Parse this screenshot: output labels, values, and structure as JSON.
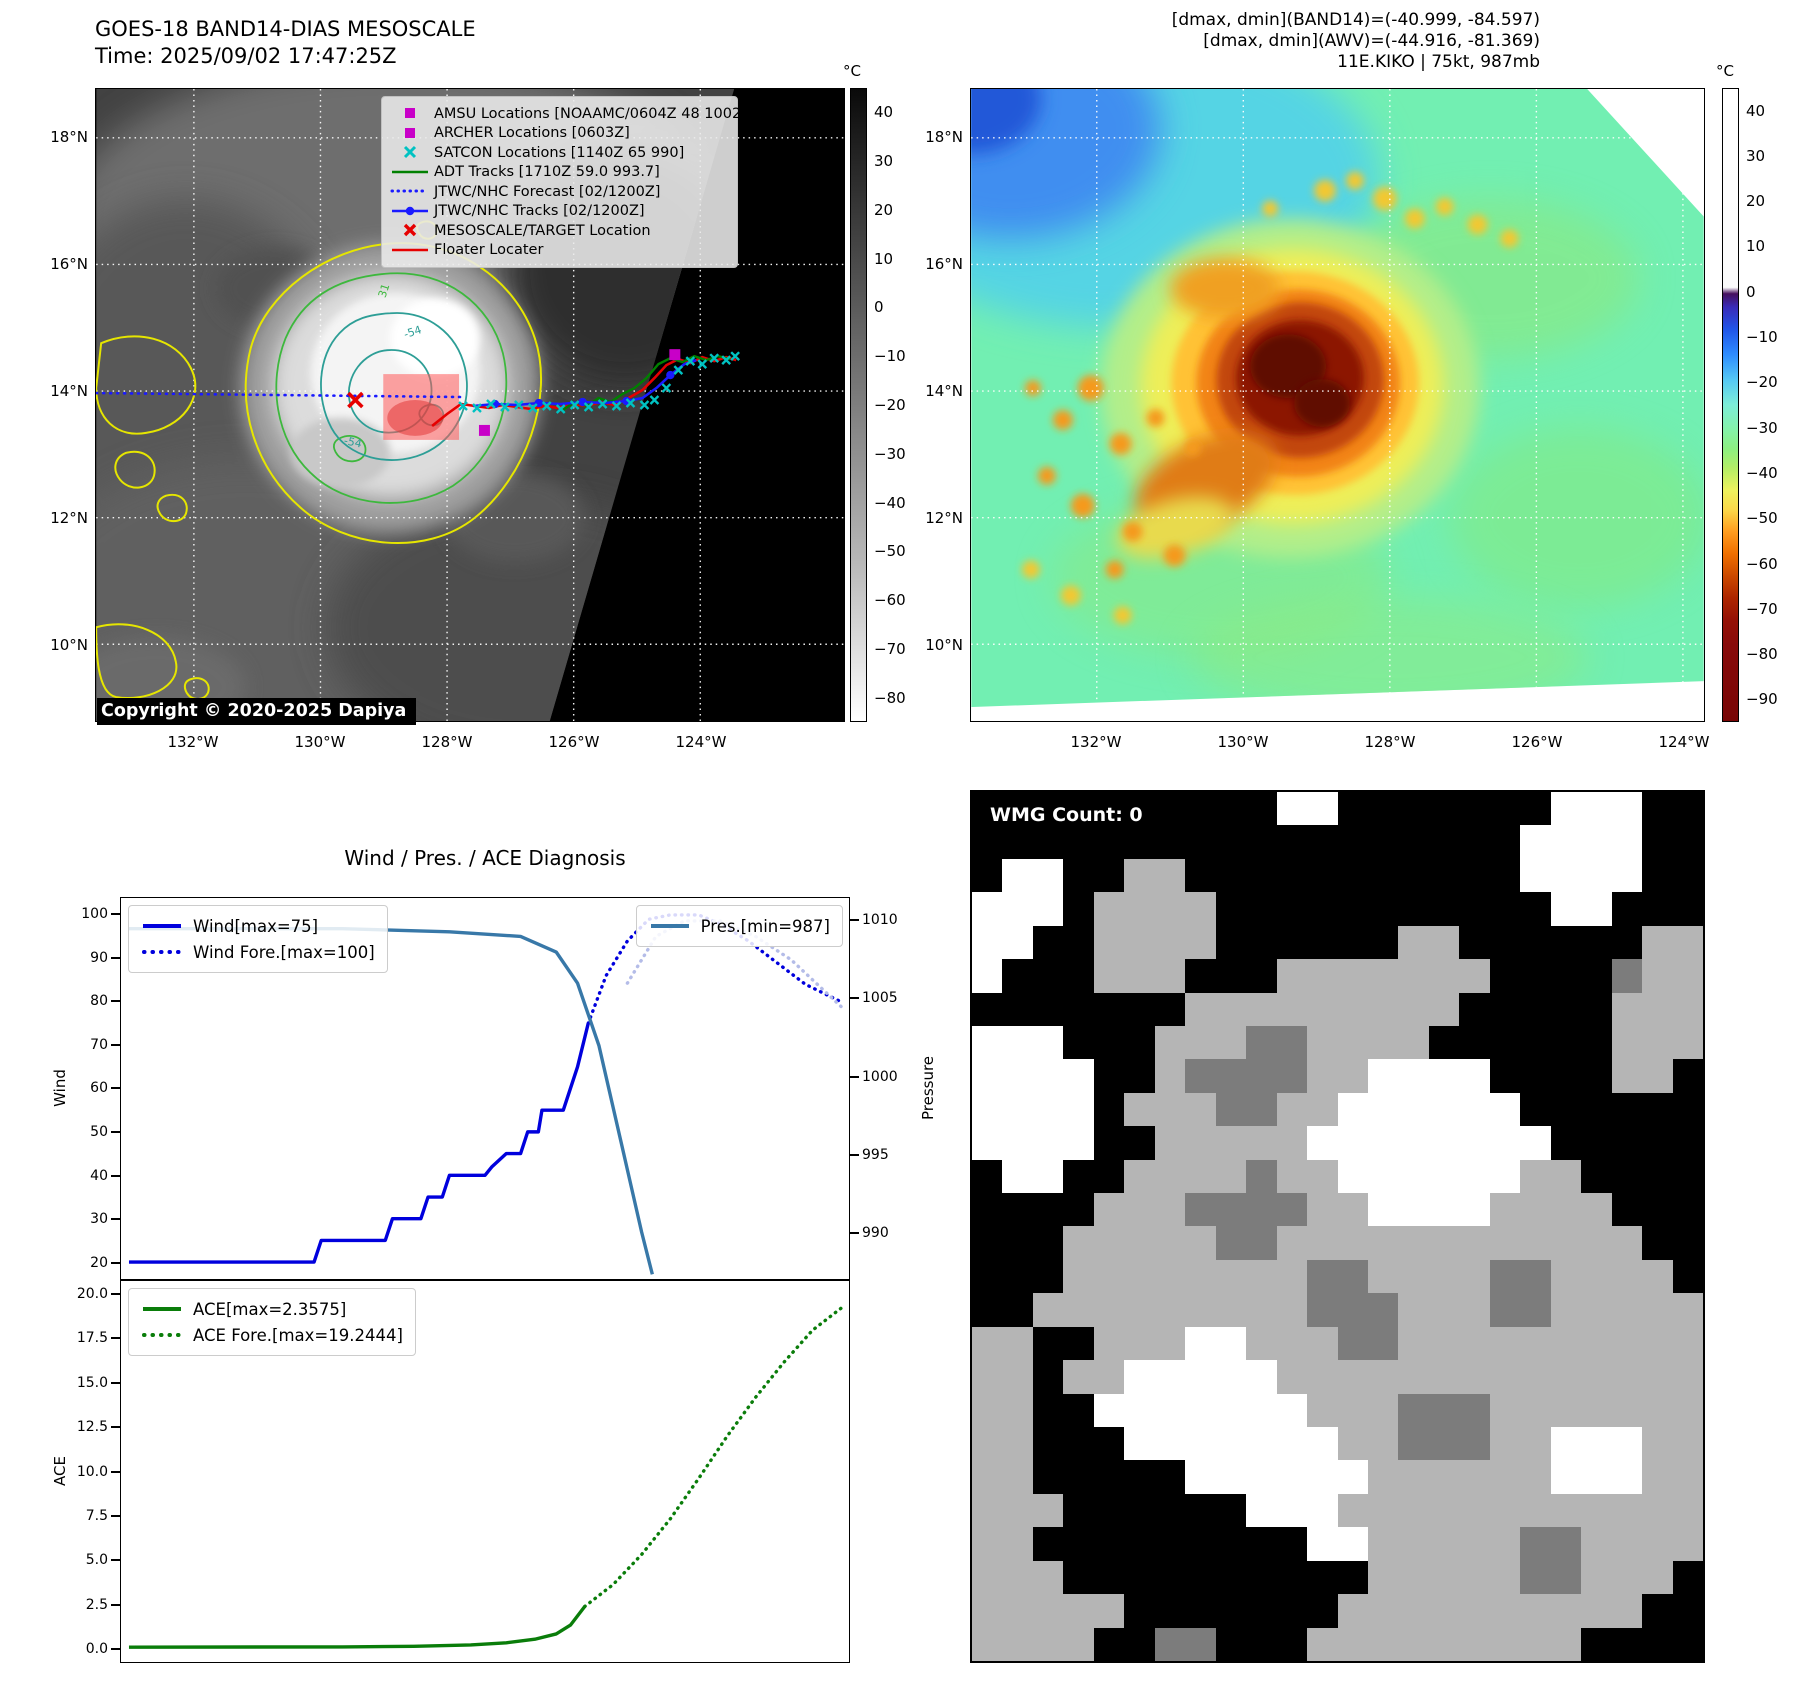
{
  "header": {
    "title_line1": "GOES-18 BAND14-DIAS MESOSCALE",
    "title_line2": "Time: 2025/09/02 17:47:25Z",
    "right_line1": "[dmax, dmin](BAND14)=(-40.999, -84.597)",
    "right_line2": "[dmax, dmin](AWV)=(-44.916, -81.369)",
    "right_line3": "11E.KIKO | 75kt, 987mb"
  },
  "axes": {
    "lat_labels": [
      "18°N",
      "16°N",
      "14°N",
      "12°N",
      "10°N"
    ],
    "lon_labels": [
      "132°W",
      "130°W",
      "128°W",
      "126°W",
      "124°W"
    ]
  },
  "left_map": {
    "legend": [
      {
        "marker": "magenta-square",
        "label": "AMSU Locations [NOAAMC/0604Z 48 1002]"
      },
      {
        "marker": "magenta-square",
        "label": "ARCHER Locations [0603Z]"
      },
      {
        "marker": "cyan-x",
        "label": "SATCON Locations [1140Z 65 990]"
      },
      {
        "marker": "green-line",
        "label": "ADT Tracks [1710Z 59.0 993.7]"
      },
      {
        "marker": "blue-dotted",
        "label": "JTWC/NHC Forecast [02/1200Z]"
      },
      {
        "marker": "blue-line-dot",
        "label": "JTWC/NHC Tracks [02/1200Z]"
      },
      {
        "marker": "red-x",
        "label": "MESOSCALE/TARGET Location"
      },
      {
        "marker": "red-line",
        "label": "Floater Locater"
      }
    ],
    "copyright": "Copyright © 2020-2025 Dapiya",
    "contour_labels": {
      "c31": "31",
      "c54a": "-54",
      "c54b": "-54"
    },
    "colorbar": {
      "unit": "°C",
      "ticks": [
        "40",
        "30",
        "20",
        "10",
        "0",
        "−10",
        "−20",
        "−30",
        "−40",
        "−50",
        "−60",
        "−70",
        "−80"
      ]
    }
  },
  "right_map": {
    "colorbar": {
      "unit": "°C",
      "ticks": [
        "40",
        "30",
        "20",
        "10",
        "0",
        "−10",
        "−20",
        "−30",
        "−40",
        "−50",
        "−60",
        "−70",
        "−80",
        "−90"
      ]
    }
  },
  "diagnosis": {
    "title": "Wind / Pres. / ACE Diagnosis",
    "wind_ylabel": "Wind",
    "pressure_ylabel": "Pressure",
    "ace_ylabel": "ACE",
    "wind_ticks": [
      "100",
      "90",
      "80",
      "70",
      "60",
      "50",
      "40",
      "30",
      "20"
    ],
    "pressure_ticks": [
      "1010",
      "1005",
      "1000",
      "995",
      "990"
    ],
    "ace_ticks": [
      "20.0",
      "17.5",
      "15.0",
      "12.5",
      "10.0",
      "7.5",
      "5.0",
      "2.5",
      "0.0"
    ],
    "legend_wind": "Wind[max=75]",
    "legend_wind_fore": "Wind Fore.[max=100]",
    "legend_pres": "Pres.[min=987]",
    "legend_ace": "ACE[max=2.3575]",
    "legend_ace_fore": "ACE Fore.[max=19.2444]"
  },
  "colors": {
    "magenta": "#c800c8",
    "cyan": "#00c2c2",
    "track_green": "#008000",
    "track_blue": "#1a1aff",
    "track_red": "#e60000",
    "wind_line": "#0000dd",
    "pressure_line": "#3878a8",
    "pressure_forecast": "#b4bce8",
    "ace_line": "#0a7d0a"
  },
  "chart_data": [
    {
      "type": "line",
      "title": "Wind / Pres. / ACE Diagnosis (wind & pressure panel)",
      "ylabel_left": "Wind",
      "ylabel_right": "Pressure",
      "ylim_left": [
        16,
        104
      ],
      "ylim_right": [
        987,
        1011.5
      ],
      "legend_position": "upper left / upper right",
      "series": [
        {
          "name": "Wind[max=75]",
          "style": "solid",
          "color": "#0000dd",
          "axis": "left",
          "points": [
            [
              0,
              20
            ],
            [
              0.26,
              20
            ],
            [
              0.27,
              25
            ],
            [
              0.36,
              25
            ],
            [
              0.37,
              30
            ],
            [
              0.41,
              30
            ],
            [
              0.42,
              35
            ],
            [
              0.44,
              35
            ],
            [
              0.45,
              40
            ],
            [
              0.5,
              40
            ],
            [
              0.51,
              42
            ],
            [
              0.53,
              45
            ],
            [
              0.55,
              45
            ],
            [
              0.56,
              50
            ],
            [
              0.575,
              50
            ],
            [
              0.58,
              55
            ],
            [
              0.61,
              55
            ],
            [
              0.63,
              65
            ],
            [
              0.645,
              75
            ]
          ]
        },
        {
          "name": "Wind Fore.[max=100]",
          "style": "dotted",
          "color": "#0000dd",
          "axis": "left",
          "points": [
            [
              0.645,
              75
            ],
            [
              0.67,
              86
            ],
            [
              0.7,
              94
            ],
            [
              0.73,
              99
            ],
            [
              0.76,
              100
            ],
            [
              0.8,
              100
            ],
            [
              0.83,
              98
            ],
            [
              0.87,
              94
            ],
            [
              0.91,
              89
            ],
            [
              0.95,
              84
            ],
            [
              1.0,
              80
            ]
          ]
        },
        {
          "name": "Pres.[min=987]",
          "style": "solid",
          "color": "#3878a8",
          "axis": "right",
          "points": [
            [
              0,
              1009.5
            ],
            [
              0.3,
              1009.5
            ],
            [
              0.45,
              1009.3
            ],
            [
              0.55,
              1009
            ],
            [
              0.6,
              1008
            ],
            [
              0.63,
              1006
            ],
            [
              0.66,
              1002
            ],
            [
              0.69,
              996
            ],
            [
              0.72,
              990
            ],
            [
              0.735,
              987.3
            ]
          ]
        },
        {
          "name": "Pres. Fore.",
          "style": "dotted",
          "color": "#b4bce8",
          "axis": "right",
          "points": [
            [
              0.7,
              1006
            ],
            [
              0.74,
              1009
            ],
            [
              0.78,
              1010
            ],
            [
              0.83,
              1010
            ],
            [
              0.88,
              1009
            ],
            [
              0.93,
              1007.5
            ],
            [
              1.0,
              1004.5
            ]
          ]
        }
      ]
    },
    {
      "type": "line",
      "title": "Wind / Pres. / ACE Diagnosis (ACE panel)",
      "ylabel_left": "ACE",
      "ylim_left": [
        -0.8,
        20.8
      ],
      "legend_position": "upper left",
      "series": [
        {
          "name": "ACE[max=2.3575]",
          "style": "solid",
          "color": "#0a7d0a",
          "axis": "left",
          "points": [
            [
              0,
              0.05
            ],
            [
              0.3,
              0.07
            ],
            [
              0.4,
              0.1
            ],
            [
              0.48,
              0.18
            ],
            [
              0.53,
              0.3
            ],
            [
              0.57,
              0.5
            ],
            [
              0.6,
              0.8
            ],
            [
              0.62,
              1.3
            ],
            [
              0.64,
              2.3575
            ]
          ]
        },
        {
          "name": "ACE Fore.[max=19.2444]",
          "style": "dotted",
          "color": "#0a7d0a",
          "axis": "left",
          "points": [
            [
              0.64,
              2.3575
            ],
            [
              0.68,
              3.6
            ],
            [
              0.72,
              5.3
            ],
            [
              0.76,
              7.3
            ],
            [
              0.8,
              9.6
            ],
            [
              0.84,
              12.0
            ],
            [
              0.88,
              14.2
            ],
            [
              0.92,
              16.2
            ],
            [
              0.96,
              18.0
            ],
            [
              1.0,
              19.2444
            ]
          ]
        }
      ]
    }
  ],
  "wmg": {
    "title": "WMG Count: 0",
    "palette": {
      "K": "#000000",
      "W": "#ffffff",
      "L": "#b5b5b5",
      "D": "#7c7c7c"
    },
    "grid": [
      "KKKKKKKKKKWWKKKKKKKWWWKK",
      "KKKKKKKKKKKKKKKKKKWWWWKK",
      "KWWKKLLKKKKKKKKKKKWWWWKK",
      "WWWKLLLLKKKKKKKKKKKWWKKK",
      "WWKKLLLLKKKKKKLLKKKKKKLL",
      "WKKKLLLKKKLLLLLLLKKKKDLL",
      "KKKKKKKLLLLLLLLLKKKKKLLL",
      "WWWKKKLLLDDLLLLKKKKKKLLL",
      "WWWWKKLDDDDLLWWWWKKKKLLK",
      "WWWWKLLLDDLLWWWWWWKKKKKK",
      "WWWWKKLLLLLWWWWWWWWKKKKK",
      "KWWKKLLLLDLLWWWWWWLLKKKK",
      "KKKKLLLDDDDLLWWWWLLLLKKK",
      "KKKLLLLLDDLLLLLLLLLLLLKK",
      "KKKLLLLLLLLDDLLLLDDLLLLK",
      "KKLLLLLLLLLDDDLLLDDLLLLL",
      "LLKKLLLWWLLLDDLLLLLLLLLL",
      "LLKLLWWWWWLLLLLLLLLLLLLL",
      "LLKKWWWWWWWLLLDDDLLLLLLL",
      "LLKKKWWWWWWWLLDDDLLWWWLL",
      "LLKKKKKWWWWWWLLLLLLWWWLL",
      "LLLKKKKKKWWWLLLLLLLLLLLL",
      "LLKKKKKKKKKWWLLLLLDDLLLL",
      "LLLKKKKKKKKKKLLLLLDDLLLK",
      "LLLLLKKKKKKKLLLLLLLLLLKK",
      "LLLLKKDDKKKLLLLLLLLLKKKK"
    ]
  }
}
